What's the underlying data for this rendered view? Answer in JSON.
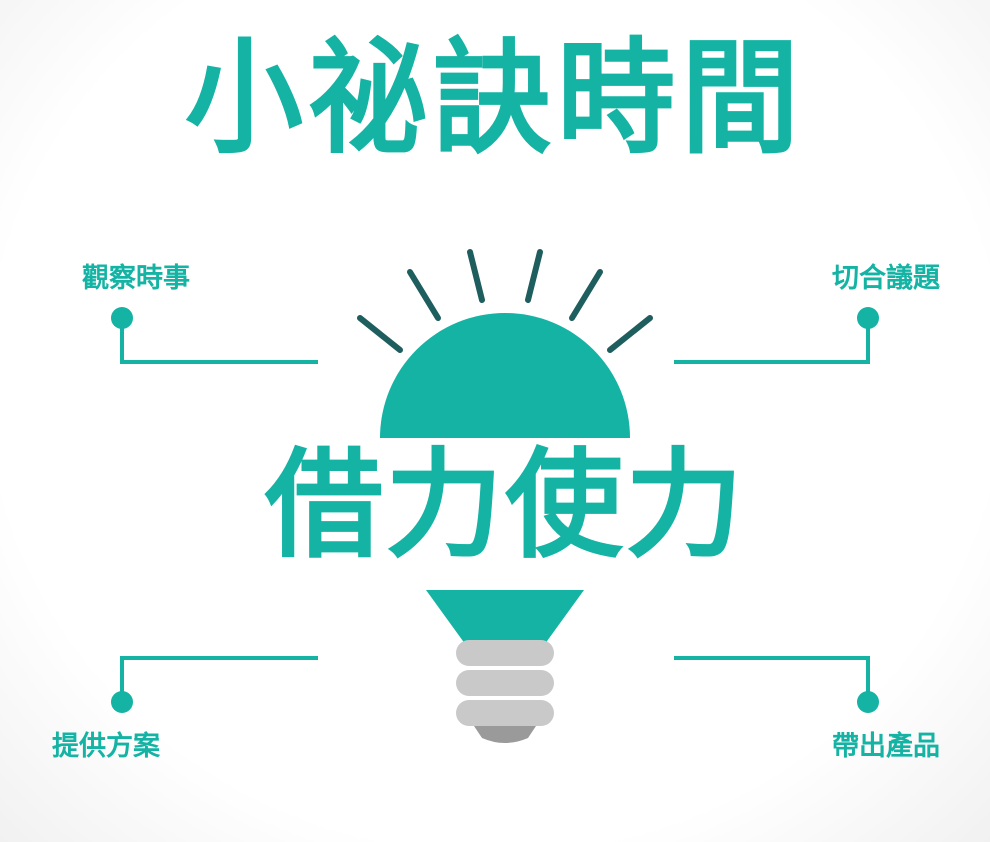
{
  "colors": {
    "accent": "#14b3a4",
    "ray": "#1f5e5e",
    "base": "#c9c9c9",
    "base_bottom": "#9a9a9a"
  },
  "title": "小祕訣時間",
  "bulb_text": "借力使力",
  "labels": {
    "top_left": "觀察時事",
    "top_right": "切合議題",
    "bottom_left": "提供方案",
    "bottom_right": "帶出產品"
  },
  "icons": {
    "bulb": "lightbulb-icon"
  }
}
